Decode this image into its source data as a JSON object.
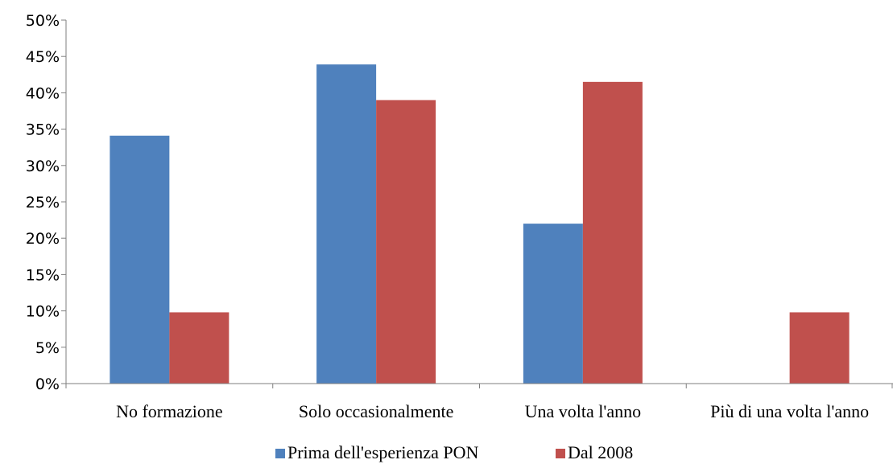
{
  "chart_data": {
    "type": "bar",
    "title": "",
    "xlabel": "",
    "ylabel": "",
    "categories": [
      "No formazione",
      "Solo occasionalmente",
      "Una volta l'anno",
      "Più di una volta l'anno"
    ],
    "series": [
      {
        "name": "Prima dell'esperienza PON",
        "color": "#4F81BD",
        "values": [
          34.1,
          43.9,
          22.0,
          0
        ]
      },
      {
        "name": "Dal 2008",
        "color": "#C0504D",
        "values": [
          9.8,
          39.0,
          41.5,
          9.8
        ]
      }
    ],
    "ylim": [
      0,
      50
    ],
    "yticks": [
      "0%",
      "5%",
      "10%",
      "15%",
      "20%",
      "25%",
      "30%",
      "35%",
      "40%",
      "45%",
      "50%"
    ],
    "grid": false,
    "legend": "bottom"
  }
}
